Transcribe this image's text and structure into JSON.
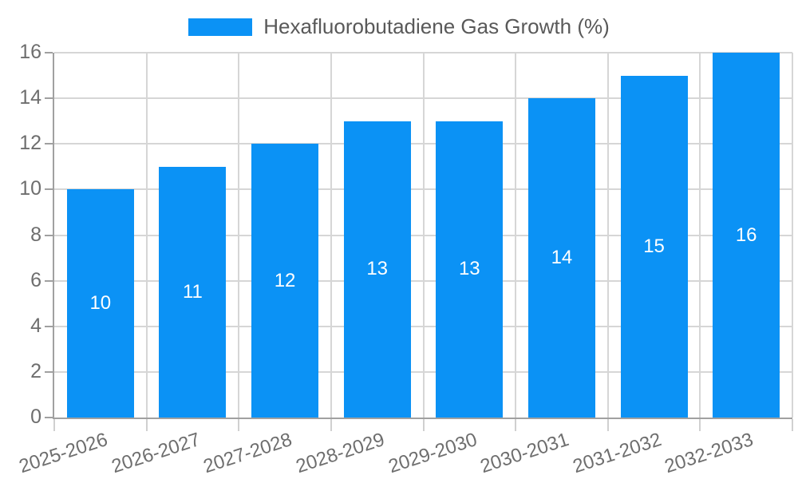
{
  "chart_data": {
    "type": "bar",
    "title": "Hexafluorobutadiene Gas Growth (%)",
    "categories": [
      "2025-2026",
      "2026-2027",
      "2027-2028",
      "2028-2029",
      "2029-2030",
      "2030-2031",
      "2031-2032",
      "2032-2033"
    ],
    "values": [
      10,
      11,
      12,
      13,
      13,
      14,
      15,
      16
    ],
    "bar_labels": [
      "10",
      "11",
      "12",
      "13",
      "13",
      "14",
      "15",
      "16"
    ],
    "xlabel": "",
    "ylabel": "",
    "ylim": [
      0,
      16
    ],
    "yticks": [
      0,
      2,
      4,
      6,
      8,
      10,
      12,
      14,
      16
    ],
    "grid": "both",
    "legend_position": "top",
    "colors": {
      "bar": "#0b92f5",
      "grid": "#d6d6d6",
      "axis": "#a0a0a0",
      "x_tick_mark": "#d0d0d0",
      "y_tick_mark": "#a0a0a0",
      "tick_label": "#6e6e6e",
      "legend_text": "#595959",
      "bar_label": "#ffffff",
      "background": "#ffffff"
    }
  }
}
